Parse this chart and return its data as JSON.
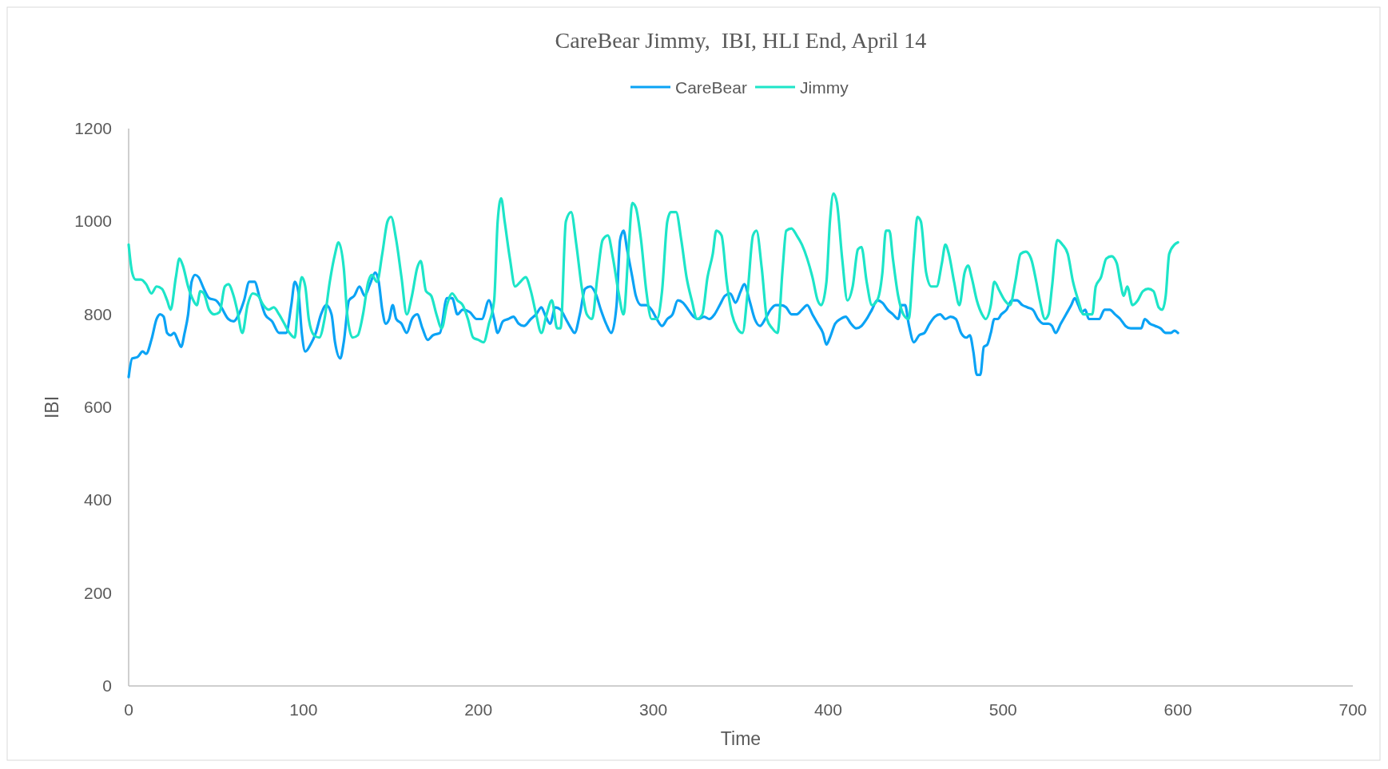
{
  "chart_data": {
    "type": "line",
    "title": "CareBear Jimmy,  IBI, HLI End, April 14",
    "xlabel": "Time",
    "ylabel": "IBI",
    "xlim": [
      0,
      700
    ],
    "xticks": [
      0,
      100,
      200,
      300,
      400,
      500,
      600,
      700
    ],
    "ylim": [
      0,
      1200
    ],
    "yticks": [
      0,
      200,
      400,
      600,
      800,
      1000,
      1200
    ],
    "legend": "top",
    "grid": false,
    "series": [
      {
        "name": "CareBear",
        "color": "#0ba3f5",
        "x": [
          0,
          2,
          5,
          8,
          10,
          13,
          16,
          18,
          20,
          22,
          24,
          26,
          28,
          30,
          32,
          34,
          36,
          38,
          40,
          43,
          46,
          50,
          53,
          57,
          60,
          63,
          66,
          69,
          72,
          75,
          78,
          82,
          86,
          90,
          93,
          95,
          97,
          99,
          101,
          104,
          107,
          110,
          113,
          116,
          118,
          121,
          123,
          126,
          129,
          132,
          135,
          138,
          141,
          143,
          145,
          147,
          149,
          151,
          153,
          156,
          159,
          162,
          165,
          168,
          171,
          174,
          178,
          182,
          185,
          188,
          191,
          195,
          199,
          202,
          206,
          209,
          211,
          214,
          217,
          220,
          223,
          226,
          230,
          233,
          236,
          238,
          241,
          244,
          247,
          250,
          253,
          255,
          258,
          261,
          264,
          267,
          270,
          273,
          276,
          279,
          281,
          283,
          285,
          288,
          290,
          293,
          296,
          299,
          302,
          305,
          308,
          311,
          314,
          317,
          320,
          323,
          326,
          329,
          332,
          335,
          338,
          341,
          344,
          347,
          350,
          352,
          355,
          358,
          361,
          364,
          367,
          370,
          373,
          376,
          379,
          382,
          385,
          388,
          391,
          394,
          397,
          399,
          401,
          404,
          407,
          410,
          413,
          416,
          419,
          422,
          425,
          428,
          431,
          434,
          437,
          440,
          442,
          444,
          446,
          449,
          452,
          455,
          458,
          461,
          464,
          467,
          470,
          473,
          476,
          479,
          481,
          483,
          485,
          487,
          489,
          491,
          493,
          495,
          497,
          499,
          502,
          505,
          508,
          511,
          514,
          517,
          520,
          523,
          526,
          528,
          530,
          533,
          536,
          539,
          541,
          543,
          545,
          547,
          549,
          552,
          555,
          558,
          561,
          564,
          567,
          570,
          573,
          576,
          579,
          581,
          584,
          587,
          590,
          593,
          596,
          598,
          600
        ],
        "values": [
          665,
          705,
          708,
          720,
          715,
          745,
          790,
          800,
          795,
          760,
          755,
          760,
          745,
          730,
          760,
          800,
          870,
          885,
          880,
          855,
          835,
          830,
          815,
          790,
          785,
          800,
          830,
          870,
          870,
          835,
          800,
          785,
          760,
          760,
          820,
          870,
          850,
          760,
          720,
          735,
          760,
          800,
          820,
          800,
          740,
          705,
          740,
          830,
          840,
          860,
          840,
          865,
          890,
          870,
          810,
          780,
          790,
          820,
          790,
          780,
          760,
          790,
          800,
          770,
          745,
          755,
          760,
          835,
          835,
          800,
          810,
          805,
          790,
          790,
          830,
          790,
          760,
          785,
          790,
          795,
          780,
          775,
          790,
          800,
          815,
          800,
          780,
          815,
          810,
          790,
          770,
          760,
          800,
          855,
          860,
          845,
          810,
          780,
          760,
          820,
          960,
          980,
          940,
          880,
          840,
          820,
          820,
          810,
          790,
          775,
          790,
          800,
          830,
          825,
          810,
          795,
          790,
          795,
          790,
          800,
          820,
          840,
          845,
          825,
          850,
          865,
          830,
          790,
          775,
          790,
          810,
          820,
          820,
          815,
          800,
          800,
          810,
          820,
          800,
          780,
          760,
          735,
          750,
          780,
          790,
          795,
          780,
          770,
          775,
          790,
          810,
          830,
          825,
          810,
          800,
          790,
          820,
          820,
          780,
          740,
          755,
          760,
          780,
          795,
          800,
          790,
          795,
          790,
          760,
          750,
          755,
          720,
          670,
          670,
          730,
          735,
          760,
          790,
          790,
          800,
          810,
          830,
          830,
          820,
          815,
          810,
          790,
          780,
          780,
          775,
          760,
          780,
          800,
          820,
          835,
          820,
          805,
          810,
          790,
          790,
          790,
          810,
          810,
          800,
          790,
          775,
          770,
          770,
          770,
          790,
          780,
          775,
          770,
          760,
          760,
          765,
          760
        ]
      },
      {
        "name": "Jimmy",
        "color": "#1de5c8",
        "x": [
          0,
          2,
          4,
          7,
          10,
          13,
          16,
          19,
          22,
          24,
          27,
          29,
          31,
          34,
          37,
          39,
          41,
          43,
          46,
          49,
          52,
          55,
          57,
          60,
          62,
          65,
          68,
          71,
          74,
          77,
          80,
          83,
          86,
          89,
          92,
          95,
          97,
          99,
          101,
          103,
          106,
          109,
          112,
          115,
          118,
          120,
          123,
          125,
          128,
          131,
          134,
          137,
          139,
          142,
          145,
          148,
          150,
          153,
          156,
          159,
          162,
          165,
          167,
          170,
          173,
          176,
          179,
          182,
          185,
          188,
          191,
          194,
          197,
          200,
          203,
          206,
          209,
          211,
          213,
          215,
          218,
          221,
          224,
          227,
          230,
          233,
          236,
          239,
          242,
          245,
          247,
          250,
          253,
          256,
          259,
          262,
          265,
          268,
          271,
          274,
          277,
          280,
          283,
          286,
          288,
          290,
          293,
          296,
          299,
          302,
          305,
          308,
          310,
          313,
          316,
          319,
          322,
          325,
          328,
          331,
          334,
          336,
          339,
          342,
          345,
          348,
          351,
          354,
          357,
          359,
          362,
          365,
          368,
          371,
          374,
          376,
          379,
          382,
          385,
          388,
          391,
          394,
          396,
          399,
          401,
          403,
          405,
          408,
          411,
          414,
          417,
          419,
          422,
          425,
          428,
          431,
          433,
          435,
          437,
          440,
          443,
          446,
          449,
          451,
          453,
          456,
          459,
          462,
          465,
          467,
          469,
          472,
          475,
          478,
          480,
          482,
          485,
          488,
          490,
          493,
          495,
          498,
          501,
          504,
          507,
          510,
          513,
          516,
          519,
          521,
          524,
          526,
          528,
          531,
          534,
          537,
          540,
          543,
          546,
          549,
          551,
          553,
          556,
          559,
          562,
          565,
          567,
          569,
          571,
          574,
          577,
          580,
          583,
          586,
          589,
          591,
          593,
          595,
          598,
          600
        ],
        "values": [
          950,
          890,
          875,
          875,
          865,
          845,
          860,
          855,
          830,
          810,
          880,
          920,
          905,
          860,
          830,
          820,
          850,
          845,
          810,
          800,
          805,
          860,
          865,
          840,
          810,
          760,
          820,
          845,
          840,
          820,
          810,
          815,
          800,
          780,
          760,
          750,
          830,
          880,
          860,
          790,
          755,
          750,
          790,
          870,
          930,
          955,
          900,
          800,
          750,
          755,
          800,
          870,
          885,
          870,
          930,
          1000,
          1010,
          960,
          880,
          800,
          840,
          900,
          915,
          850,
          840,
          800,
          770,
          820,
          845,
          830,
          820,
          790,
          750,
          745,
          740,
          780,
          830,
          1000,
          1050,
          1000,
          920,
          860,
          870,
          880,
          850,
          800,
          760,
          800,
          830,
          770,
          770,
          1000,
          1020,
          950,
          860,
          800,
          790,
          880,
          960,
          970,
          920,
          850,
          800,
          950,
          1040,
          1030,
          960,
          850,
          790,
          790,
          850,
          1000,
          1020,
          1020,
          960,
          880,
          830,
          790,
          800,
          880,
          930,
          980,
          970,
          870,
          800,
          770,
          760,
          850,
          970,
          980,
          900,
          790,
          770,
          760,
          900,
          980,
          985,
          970,
          950,
          920,
          880,
          830,
          820,
          870,
          1000,
          1060,
          1040,
          920,
          830,
          860,
          940,
          945,
          870,
          820,
          830,
          890,
          980,
          980,
          920,
          840,
          800,
          790,
          930,
          1010,
          1000,
          890,
          860,
          860,
          910,
          950,
          930,
          870,
          820,
          890,
          905,
          880,
          830,
          800,
          790,
          820,
          870,
          850,
          830,
          820,
          870,
          930,
          935,
          920,
          870,
          830,
          790,
          800,
          860,
          960,
          950,
          930,
          870,
          830,
          800,
          800,
          800,
          860,
          880,
          920,
          925,
          910,
          870,
          840,
          860,
          820,
          830,
          850,
          855,
          850,
          815,
          810,
          840,
          930,
          950,
          955
        ]
      }
    ]
  }
}
